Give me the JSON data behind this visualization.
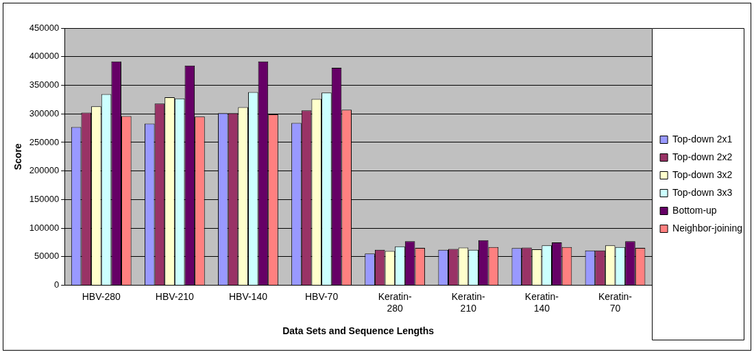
{
  "chart_data": {
    "type": "bar",
    "xlabel": "Data Sets and Sequence Lengths",
    "ylabel": "Score",
    "categories": [
      "HBV-280",
      "HBV-210",
      "HBV-140",
      "HBV-70",
      "Keratin-280",
      "Keratin-210",
      "Keratin-140",
      "Keratin-70"
    ],
    "series": [
      {
        "name": "Top-down 2x1",
        "color": "#9999ff",
        "values": [
          277000,
          283000,
          301000,
          284000,
          55500,
          62000,
          65000,
          61000
        ]
      },
      {
        "name": "Top-down 2x2",
        "color": "#993366",
        "values": [
          302000,
          318000,
          301000,
          306000,
          62000,
          63500,
          66000,
          61000
        ]
      },
      {
        "name": "Top-down 3x2",
        "color": "#ffffcc",
        "values": [
          313000,
          329000,
          311500,
          326000,
          60000,
          66000,
          63000,
          70000
        ]
      },
      {
        "name": "Top-down 3x3",
        "color": "#ccffff",
        "values": [
          334500,
          327000,
          338000,
          337000,
          68000,
          62000,
          70000,
          67000
        ]
      },
      {
        "name": "Bottom-up",
        "color": "#660066",
        "values": [
          391500,
          384500,
          391500,
          380500,
          77000,
          79000,
          75000,
          77000
        ]
      },
      {
        "name": "Neighbor-joining",
        "color": "#ff8080",
        "values": [
          296000,
          295000,
          299000,
          307000,
          65500,
          67000,
          67000,
          65500
        ]
      }
    ],
    "ylim": [
      0,
      450000
    ],
    "yticks": [
      0,
      50000,
      100000,
      150000,
      200000,
      250000,
      300000,
      350000,
      400000,
      450000
    ],
    "grid": "y",
    "legend": "right"
  }
}
